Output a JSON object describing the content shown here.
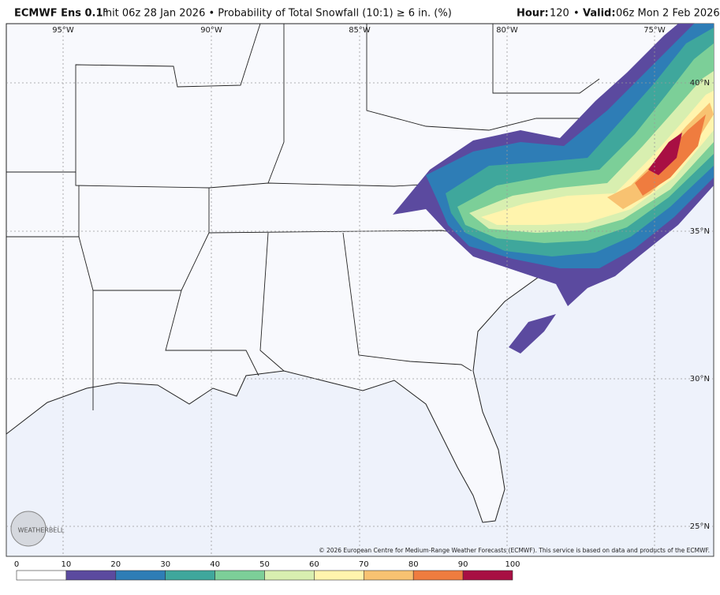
{
  "header": {
    "title": "ECMWF Ens 0.1°",
    "subtitle": "Init 06z 28 Jan 2026 • Probability of Total Snowfall (10:1) ≥ 6 in. (%)",
    "hour_label": "Hour:",
    "hour": "120",
    "separator": "•",
    "valid_label": "Valid:",
    "valid": "06z Mon 2 Feb 2026"
  },
  "map": {
    "lon_labels": [
      "95°W",
      "90°W",
      "85°W",
      "80°W",
      "75°W"
    ],
    "lat_labels": [
      "40°N",
      "35°N",
      "30°N",
      "25°N"
    ],
    "copyright": "© 2026 European Centre for Medium-Range Weather Forecasts (ECMWF). This service is based on data and products of the ECMWF.",
    "logo": "WEATHERBELL"
  },
  "legend": {
    "ticks": [
      0,
      10,
      20,
      30,
      40,
      50,
      60,
      70,
      80,
      90,
      100
    ],
    "colors": [
      "#ffffff",
      "#5b4a9f",
      "#2e7db6",
      "#3fa79c",
      "#7ccf98",
      "#d8efb0",
      "#fff4ad",
      "#f8c271",
      "#ef7c3f",
      "#a80f43"
    ]
  }
}
